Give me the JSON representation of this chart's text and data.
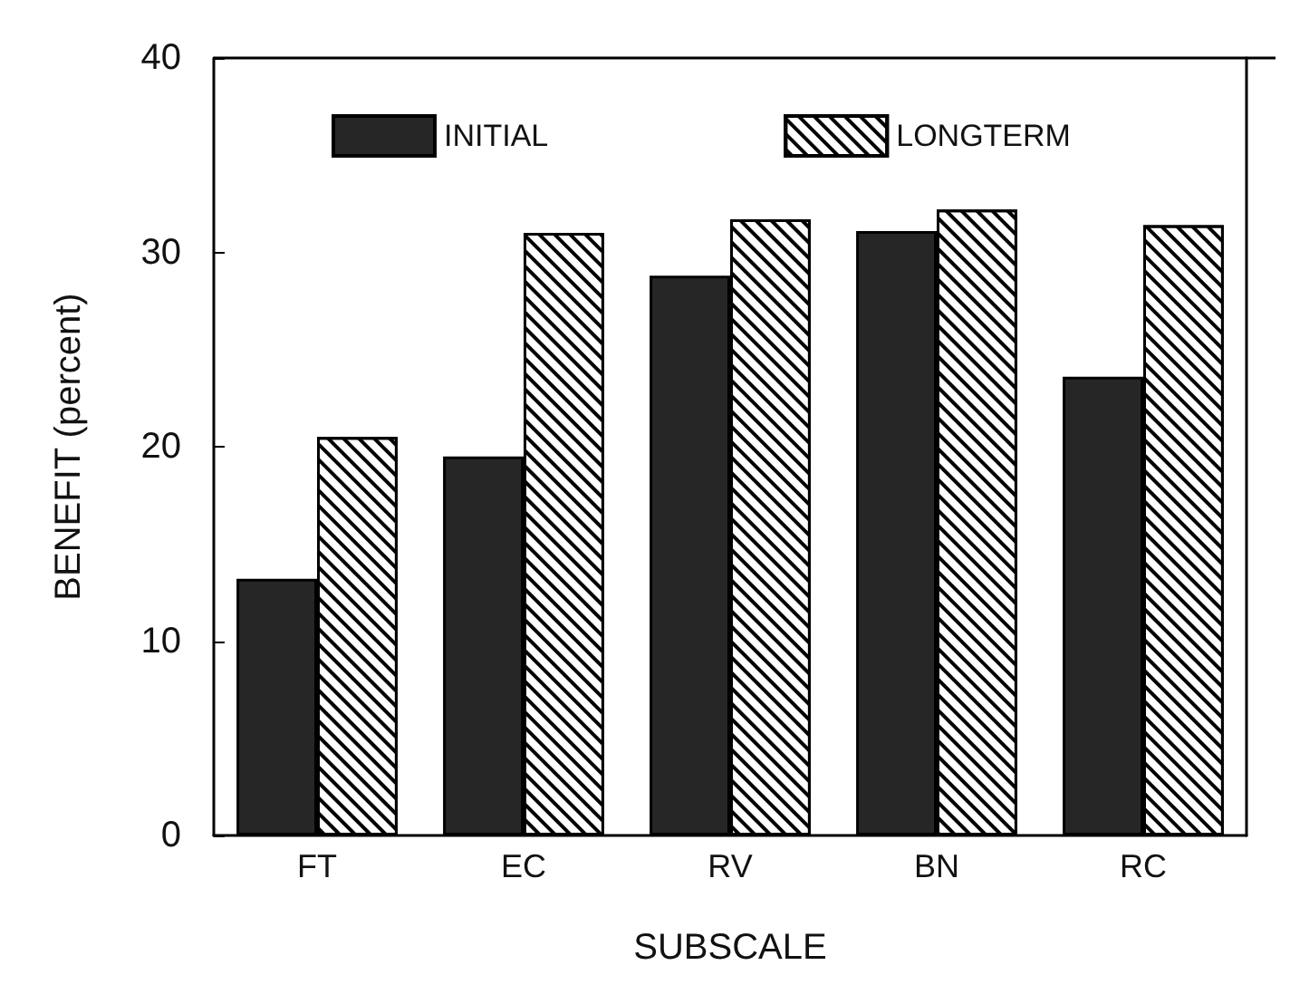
{
  "chart_data": {
    "type": "bar",
    "xlabel": "SUBSCALE",
    "ylabel": "BENEFIT (percent)",
    "categories": [
      "FT",
      "EC",
      "RV",
      "BN",
      "RC"
    ],
    "series": [
      {
        "name": "INITIAL",
        "color": "#262626",
        "values": [
          13.2,
          19.5,
          28.8,
          31.1,
          23.6
        ]
      },
      {
        "name": "LONGTERM",
        "color": "#ffffff",
        "values": [
          20.5,
          31,
          31.7,
          32.2,
          31.4
        ]
      }
    ],
    "ylim": [
      0,
      40
    ],
    "yticks": [
      0,
      10,
      20,
      30,
      40
    ],
    "grid": false,
    "legend": "top"
  }
}
